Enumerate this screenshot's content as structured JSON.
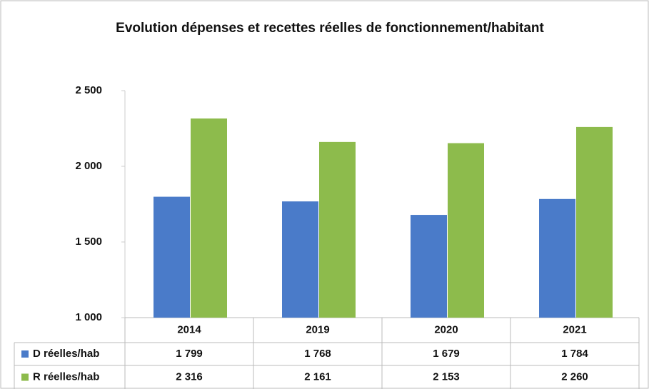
{
  "chart_data": {
    "type": "bar",
    "title": "Evolution dépenses et recettes réelles de fonctionnement/habitant",
    "categories": [
      "2014",
      "2019",
      "2020",
      "2021"
    ],
    "series": [
      {
        "name": "D réelles/hab",
        "color": "#4a7bc9",
        "values": [
          1799,
          1768,
          1679,
          1784
        ],
        "value_labels": [
          "1 799",
          "1 768",
          "1 679",
          "1 784"
        ]
      },
      {
        "name": "R réelles/hab",
        "color": "#8dbb4c",
        "values": [
          2316,
          2161,
          2153,
          2260
        ],
        "value_labels": [
          "2 316",
          "2 161",
          "2 153",
          "2 260"
        ]
      }
    ],
    "ylim": [
      1000,
      2500
    ],
    "yticks": [
      {
        "value": 1000,
        "label": "1 000"
      },
      {
        "value": 1500,
        "label": "1 500"
      },
      {
        "value": 2000,
        "label": "2 000"
      },
      {
        "value": 2500,
        "label": "2 500"
      }
    ],
    "grid": false,
    "legend": "table"
  }
}
